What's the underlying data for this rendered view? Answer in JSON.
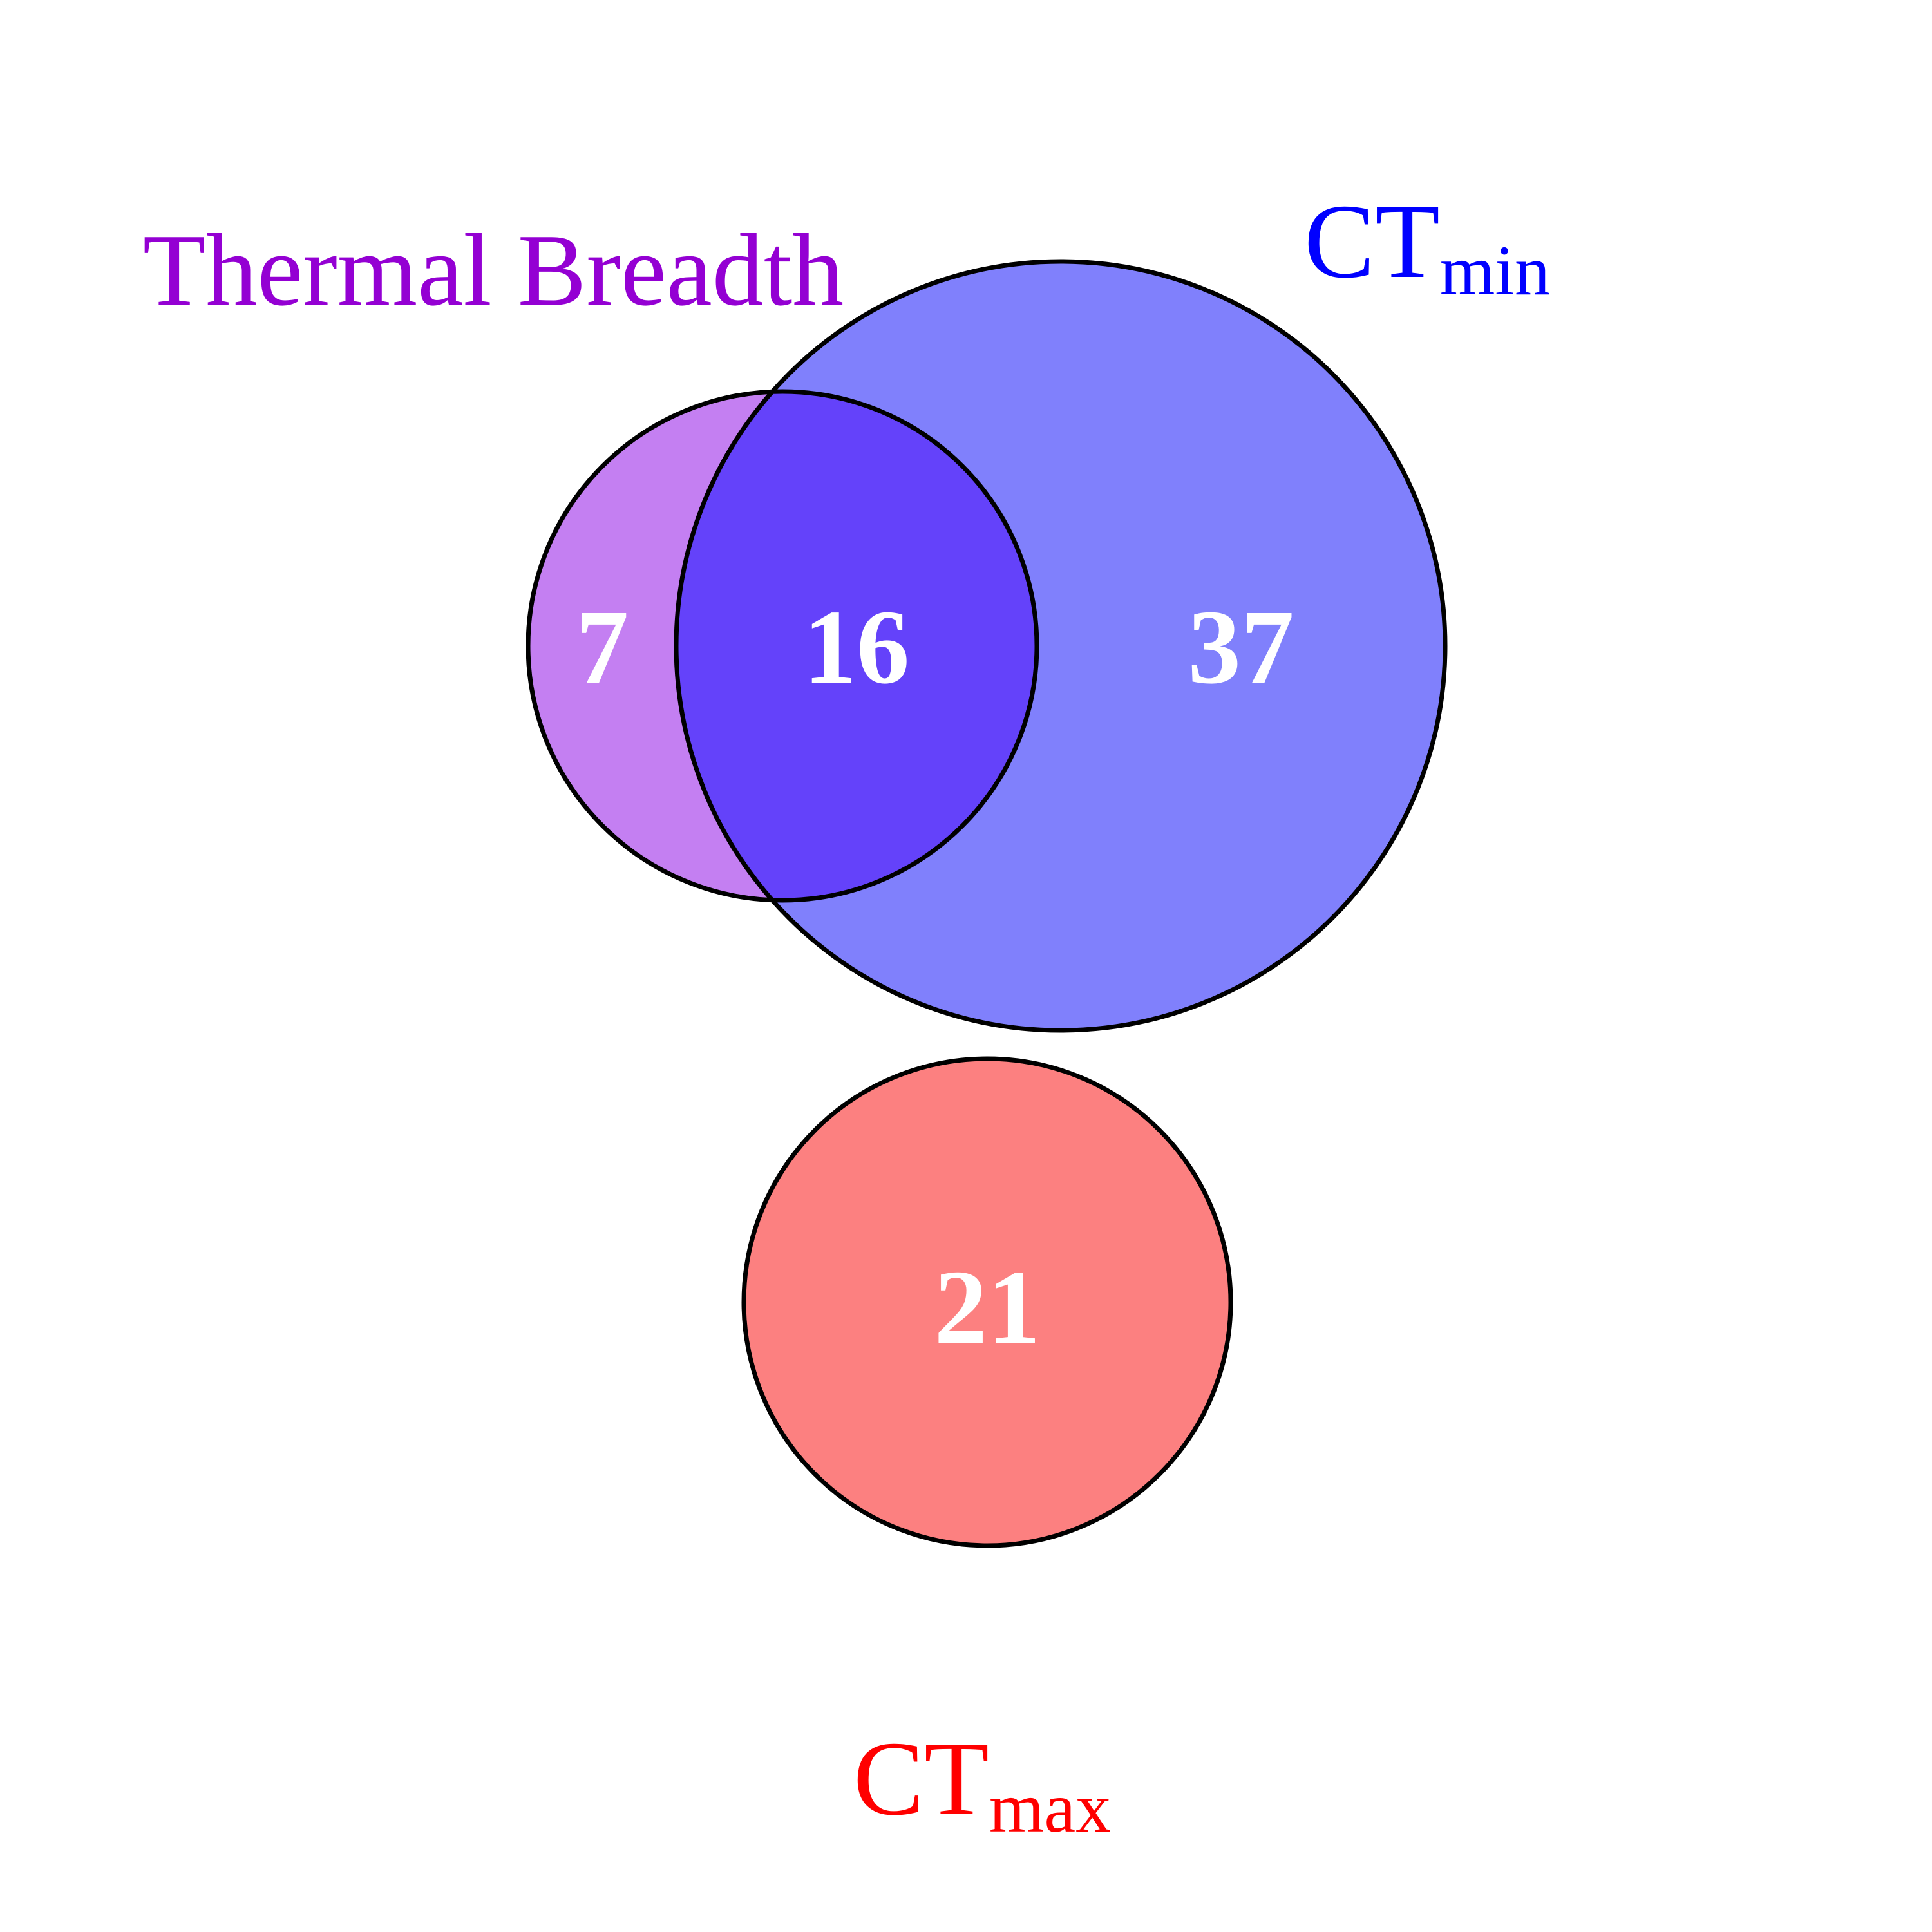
{
  "diagram": {
    "type": "venn",
    "sets": [
      {
        "id": "thermal_breadth",
        "label": "Thermal Breadth",
        "color": "#9400D3",
        "fill": "#c47ff2"
      },
      {
        "id": "ct_min",
        "label_main": "CT",
        "label_sub": "min",
        "color": "#0000ff",
        "fill": "#8080fc"
      },
      {
        "id": "ct_max",
        "label_main": "CT",
        "label_sub": "max",
        "color": "#ff0000",
        "fill": "#fc8080"
      }
    ],
    "regions": [
      {
        "sets": [
          "thermal_breadth"
        ],
        "count": "7"
      },
      {
        "sets": [
          "thermal_breadth",
          "ct_min"
        ],
        "count": "16"
      },
      {
        "sets": [
          "ct_min"
        ],
        "count": "37"
      },
      {
        "sets": [
          "ct_max"
        ],
        "count": "21"
      }
    ],
    "overlap_fill": "#6442fa",
    "outline_color": "#000000",
    "count_color": "#ffffff"
  }
}
